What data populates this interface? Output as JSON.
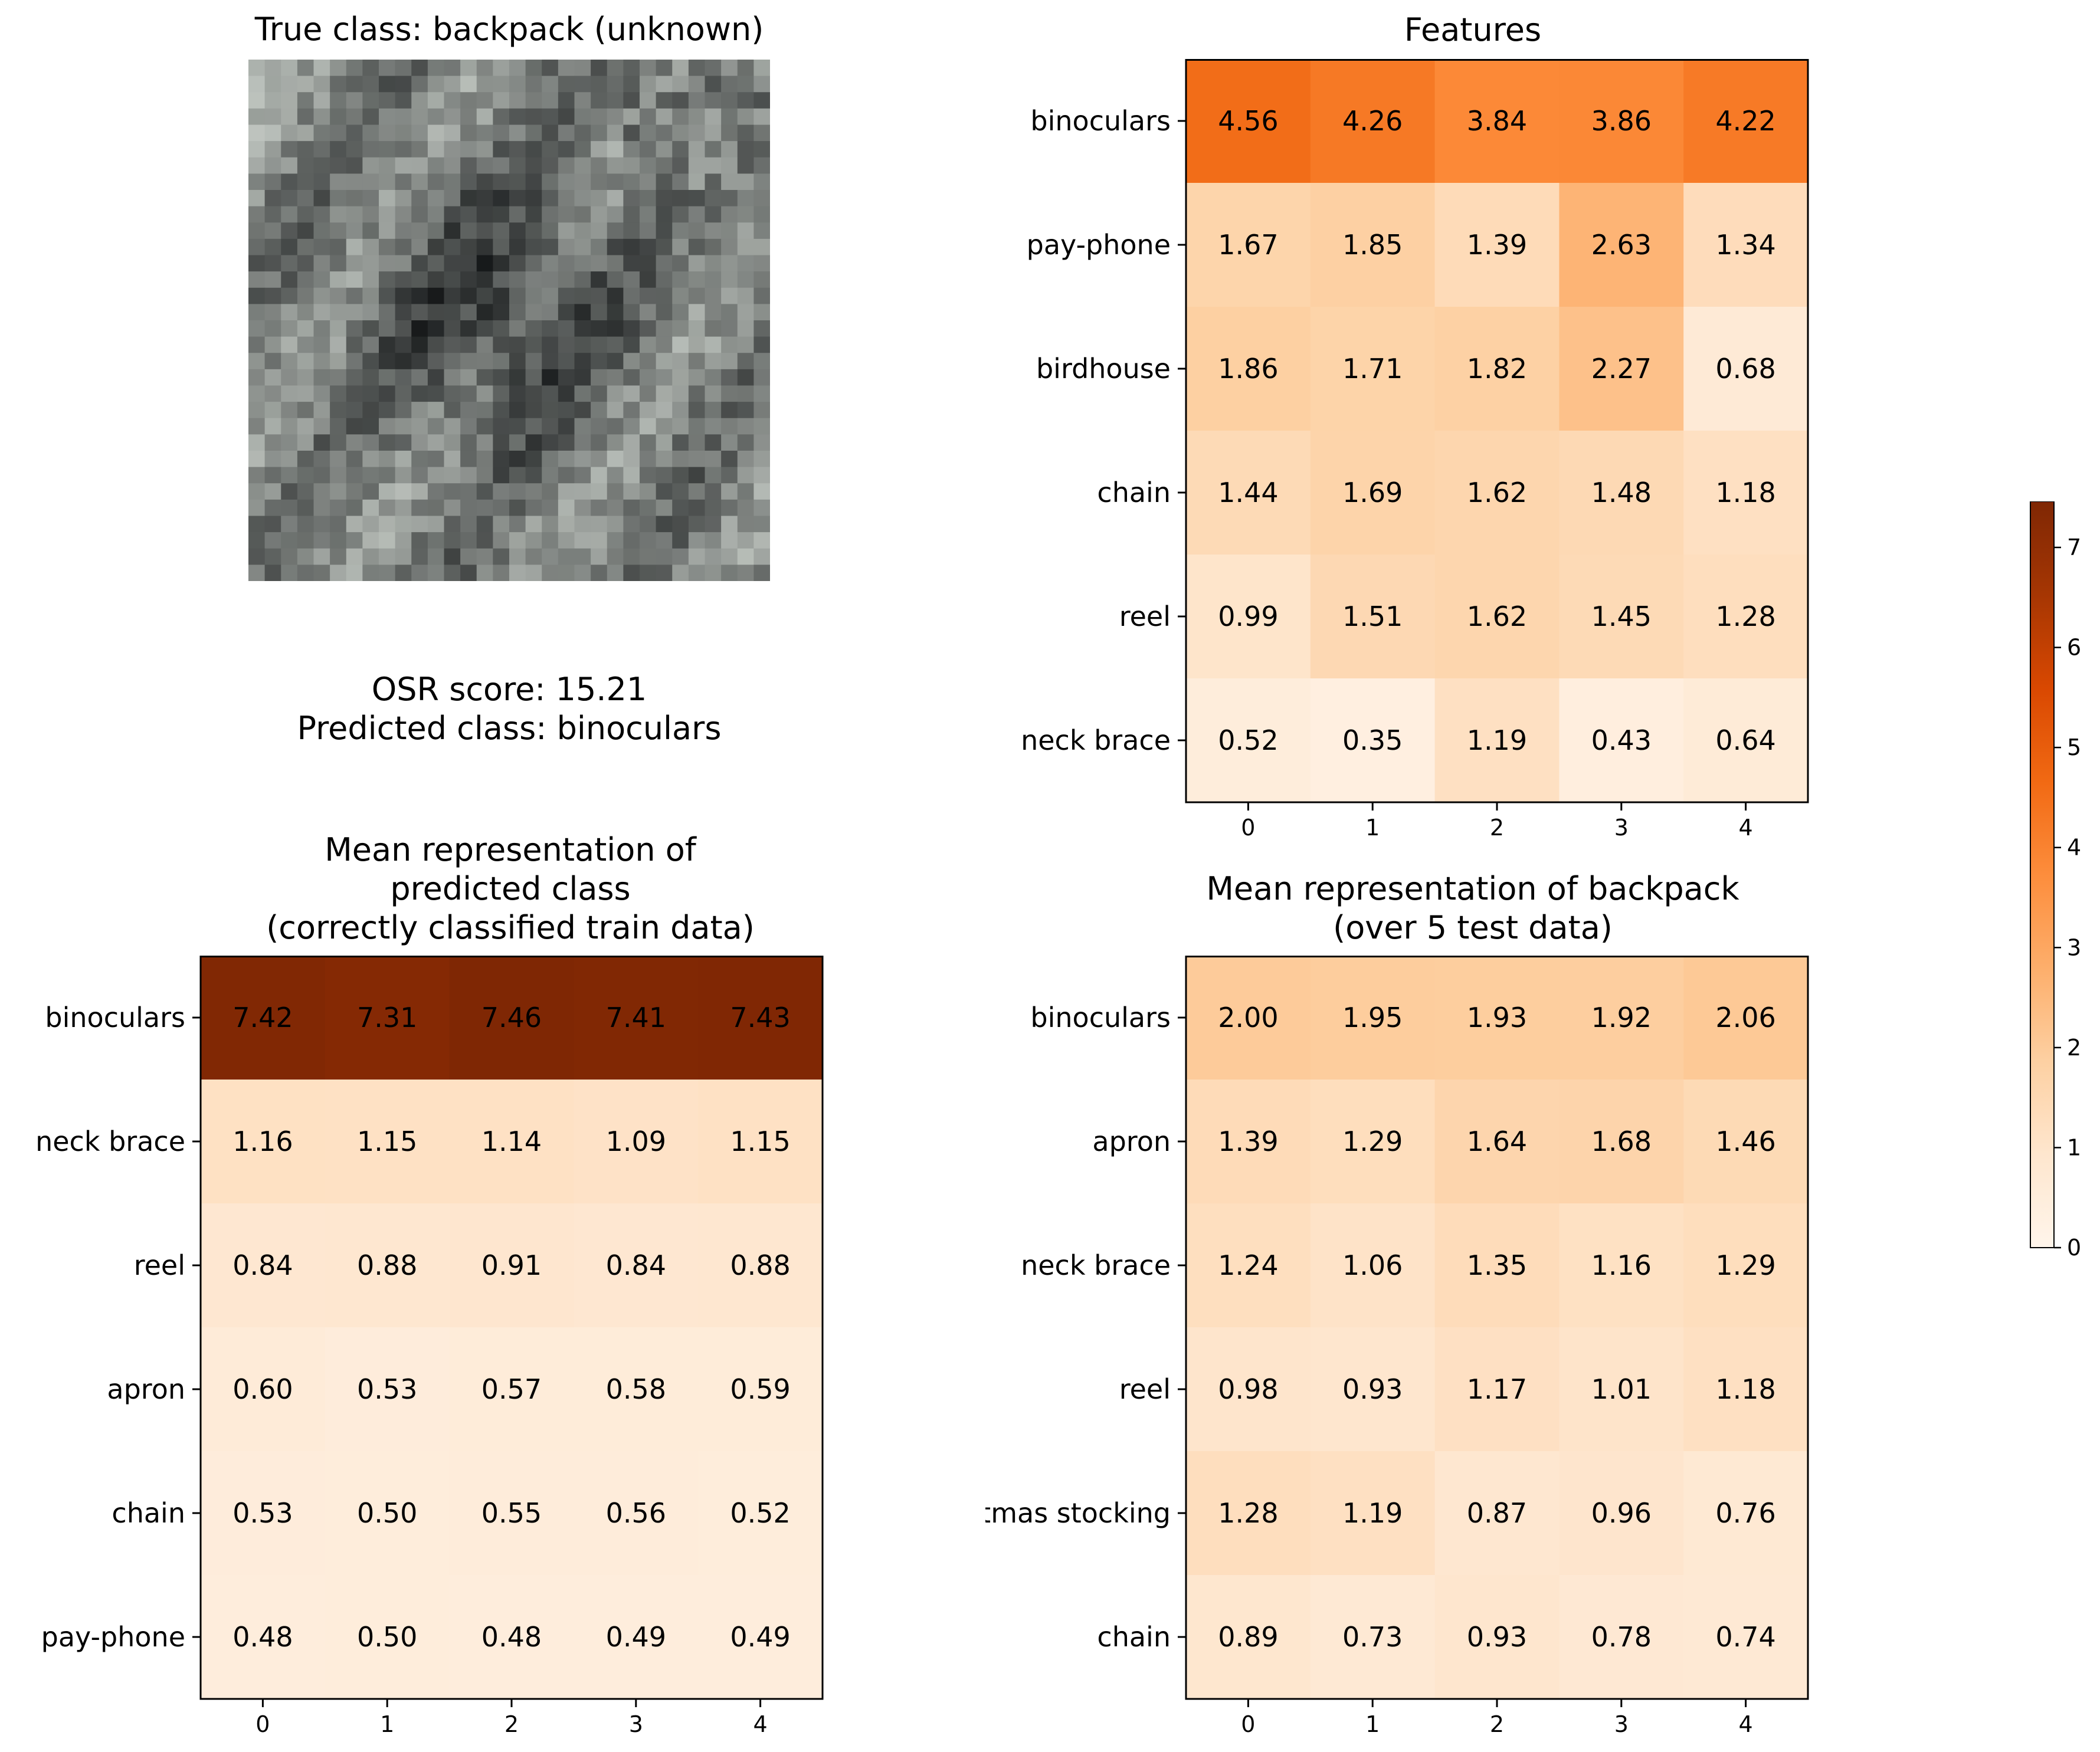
{
  "image_panel": {
    "title": "True class: backpack (unknown)",
    "osr_line": "OSR score: 15.21",
    "predicted_line": "Predicted class: binoculars"
  },
  "colorbar": {
    "ticks": [
      "0",
      "1",
      "2",
      "3",
      "4",
      "5",
      "6",
      "7"
    ],
    "min": 0,
    "max": 7.46,
    "colormap": [
      "#fff5eb",
      "#fee6ce",
      "#fdd0a2",
      "#fdae6b",
      "#fd8d3c",
      "#f16913",
      "#d94801",
      "#a63603",
      "#7f2704"
    ]
  },
  "chart_data": [
    {
      "type": "heatmap",
      "title": "Features",
      "title_lines": [
        "Features"
      ],
      "columns": [
        "0",
        "1",
        "2",
        "3",
        "4"
      ],
      "rows": [
        "binoculars",
        "pay-phone",
        "birdhouse",
        "chain",
        "reel",
        "neck brace"
      ],
      "values": [
        [
          4.56,
          4.26,
          3.84,
          3.86,
          4.22
        ],
        [
          1.67,
          1.85,
          1.39,
          2.63,
          1.34
        ],
        [
          1.86,
          1.71,
          1.82,
          2.27,
          0.68
        ],
        [
          1.44,
          1.69,
          1.62,
          1.48,
          1.18
        ],
        [
          0.99,
          1.51,
          1.62,
          1.45,
          1.28
        ],
        [
          0.52,
          0.35,
          1.19,
          0.43,
          0.64
        ]
      ]
    },
    {
      "type": "heatmap",
      "title": "Mean representation of predicted class (correctly classified train data)",
      "title_lines": [
        "Mean representation of",
        "predicted class",
        "(correctly classified train data)"
      ],
      "columns": [
        "0",
        "1",
        "2",
        "3",
        "4"
      ],
      "rows": [
        "binoculars",
        "neck brace",
        "reel",
        "apron",
        "chain",
        "pay-phone"
      ],
      "values": [
        [
          7.42,
          7.31,
          7.46,
          7.41,
          7.43
        ],
        [
          1.16,
          1.15,
          1.14,
          1.09,
          1.15
        ],
        [
          0.84,
          0.88,
          0.91,
          0.84,
          0.88
        ],
        [
          0.6,
          0.53,
          0.57,
          0.58,
          0.59
        ],
        [
          0.53,
          0.5,
          0.55,
          0.56,
          0.52
        ],
        [
          0.48,
          0.5,
          0.48,
          0.49,
          0.49
        ]
      ]
    },
    {
      "type": "heatmap",
      "title": "Mean representation of backpack (over 5 test data)",
      "title_lines": [
        "Mean representation of backpack",
        "(over 5 test data)"
      ],
      "columns": [
        "0",
        "1",
        "2",
        "3",
        "4"
      ],
      "rows": [
        "binoculars",
        "apron",
        "neck brace",
        "reel",
        "Christmas stocking",
        "chain"
      ],
      "values": [
        [
          2.0,
          1.95,
          1.93,
          1.92,
          2.06
        ],
        [
          1.39,
          1.29,
          1.64,
          1.68,
          1.46
        ],
        [
          1.24,
          1.06,
          1.35,
          1.16,
          1.29
        ],
        [
          0.98,
          0.93,
          1.17,
          1.01,
          1.18
        ],
        [
          1.28,
          1.19,
          0.87,
          0.96,
          0.76
        ],
        [
          0.89,
          0.73,
          0.93,
          0.78,
          0.74
        ]
      ]
    }
  ]
}
